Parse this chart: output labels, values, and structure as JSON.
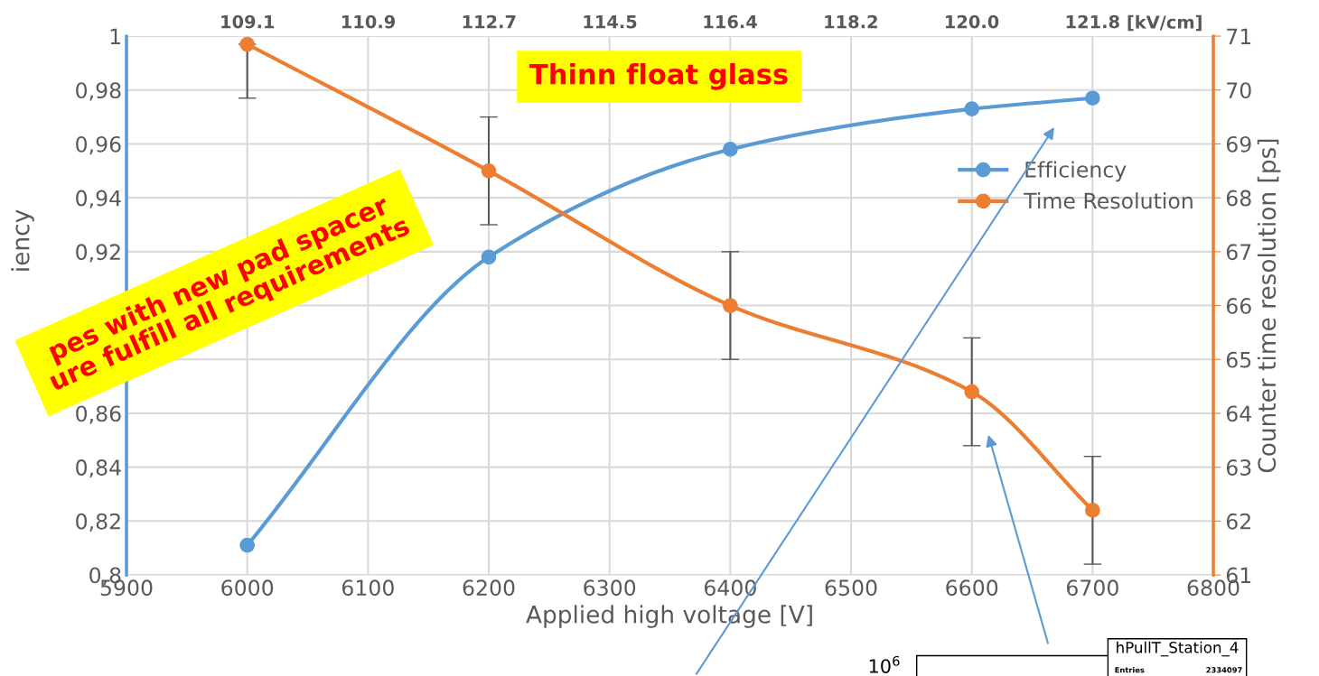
{
  "chart_data": {
    "type": "line",
    "title": "Thinn float glass",
    "xlabel": "Applied high voltage [V]",
    "ylabel": "iency",
    "y2label": "Counter time resolution [ps]",
    "x2label": "[kV/cm]",
    "x": [
      6000,
      6200,
      6400,
      6600,
      6700
    ],
    "series": [
      {
        "name": "Efficiency",
        "color": "#5b9bd5",
        "values": [
          0.811,
          0.918,
          0.958,
          0.973,
          0.977
        ]
      },
      {
        "name": "Time Resolution",
        "color": "#ed7d31",
        "axis": "y2",
        "values": [
          70.85,
          68.5,
          66.0,
          64.4,
          62.2
        ],
        "errors": [
          [
            69.85,
            70.85
          ],
          1,
          1,
          1,
          1
        ]
      }
    ],
    "xlim": [
      5900,
      6800
    ],
    "xticks": [
      5900,
      6000,
      6100,
      6200,
      6300,
      6400,
      6500,
      6600,
      6700,
      6800
    ],
    "ylim": [
      0.8,
      1
    ],
    "yticks": [
      {
        "value": 0.8,
        "label": "0,8"
      },
      {
        "value": 0.82,
        "label": "0,82"
      },
      {
        "value": 0.84,
        "label": "0,84"
      },
      {
        "value": 0.86,
        "label": "0,86"
      },
      {
        "value": 0.88,
        "label": null
      },
      {
        "value": 0.9,
        "label": null
      },
      {
        "value": 0.92,
        "label": "0,92"
      },
      {
        "value": 0.94,
        "label": "0,94"
      },
      {
        "value": 0.96,
        "label": "0,96"
      },
      {
        "value": 0.98,
        "label": "0,98"
      },
      1
    ],
    "y2lim": [
      61,
      71
    ],
    "y2ticks": [
      61,
      62,
      63,
      64,
      65,
      66,
      67,
      68,
      69,
      70,
      71
    ],
    "x2lim": [
      107.27,
      123.64
    ],
    "x2ticks": [
      {
        "value": 109.09,
        "label": "109.1"
      },
      {
        "value": 110.91,
        "label": "110.9"
      },
      {
        "value": 112.73,
        "label": "112.7"
      },
      {
        "value": 114.55,
        "label": "114.5"
      },
      {
        "value": 116.36,
        "label": "116.4"
      },
      {
        "value": 118.18,
        "label": "118.2"
      },
      {
        "value": 120.0,
        "label": "120.0"
      },
      {
        "value": 121.82,
        "label": "121.8"
      }
    ],
    "grid": true,
    "legend": "right",
    "marker": "circle",
    "line_style": "solid",
    "annotations": [
      "pes with new pad spacer\nure fulfill all requirements",
      "10$^{6}$",
      "hPullT_Station_4",
      "Entries",
      "2334097"
    ]
  }
}
